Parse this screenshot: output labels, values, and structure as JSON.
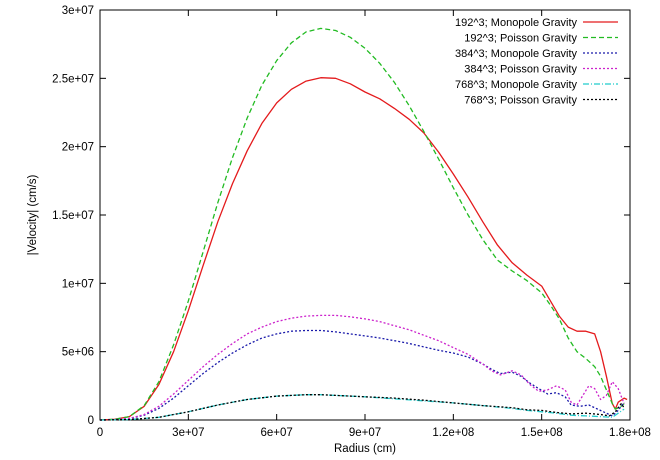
{
  "chart_data": {
    "type": "line",
    "xlabel": "Radius (cm)",
    "ylabel": "|Velocity| (cm/s)",
    "xlim": [
      0,
      180000000
    ],
    "ylim": [
      0,
      30000000
    ],
    "x_ticks": [
      {
        "value": 0,
        "label": "0"
      },
      {
        "value": 30000000,
        "label": "3e+07"
      },
      {
        "value": 60000000,
        "label": "6e+07"
      },
      {
        "value": 90000000,
        "label": "9e+07"
      },
      {
        "value": 120000000,
        "label": "1.2e+08"
      },
      {
        "value": 150000000,
        "label": "1.5e+08"
      },
      {
        "value": 180000000,
        "label": "1.8e+08"
      }
    ],
    "y_ticks": [
      {
        "value": 0,
        "label": "0"
      },
      {
        "value": 5000000,
        "label": "5e+06"
      },
      {
        "value": 10000000,
        "label": "1e+07"
      },
      {
        "value": 15000000,
        "label": "1.5e+07"
      },
      {
        "value": 20000000,
        "label": "2e+07"
      },
      {
        "value": 25000000,
        "label": "2.5e+07"
      },
      {
        "value": 30000000,
        "label": "3e+07"
      }
    ],
    "grid": false,
    "legend_position": "top-right",
    "series": [
      {
        "name": "192^3; Monopole Gravity",
        "color": "#e41a1c",
        "dash": "",
        "points": [
          [
            0,
            0
          ],
          [
            5000000,
            50000
          ],
          [
            10000000,
            250000
          ],
          [
            15000000,
            1000000
          ],
          [
            20000000,
            2600000
          ],
          [
            25000000,
            5000000
          ],
          [
            30000000,
            8000000
          ],
          [
            35000000,
            11300000
          ],
          [
            40000000,
            14500000
          ],
          [
            45000000,
            17300000
          ],
          [
            50000000,
            19700000
          ],
          [
            55000000,
            21700000
          ],
          [
            60000000,
            23200000
          ],
          [
            65000000,
            24200000
          ],
          [
            70000000,
            24800000
          ],
          [
            75000000,
            25050000
          ],
          [
            80000000,
            25000000
          ],
          [
            85000000,
            24600000
          ],
          [
            90000000,
            24000000
          ],
          [
            95000000,
            23500000
          ],
          [
            100000000,
            22800000
          ],
          [
            105000000,
            22000000
          ],
          [
            110000000,
            21000000
          ],
          [
            115000000,
            19600000
          ],
          [
            120000000,
            18000000
          ],
          [
            125000000,
            16300000
          ],
          [
            130000000,
            14500000
          ],
          [
            135000000,
            12800000
          ],
          [
            140000000,
            11500000
          ],
          [
            145000000,
            10600000
          ],
          [
            150000000,
            9800000
          ],
          [
            153000000,
            8700000
          ],
          [
            156000000,
            7600000
          ],
          [
            159000000,
            6800000
          ],
          [
            162000000,
            6500000
          ],
          [
            165000000,
            6500000
          ],
          [
            168000000,
            6300000
          ],
          [
            170000000,
            5000000
          ],
          [
            172000000,
            3200000
          ],
          [
            174000000,
            1200000
          ],
          [
            175000000,
            800000
          ],
          [
            176000000,
            1300000
          ],
          [
            178000000,
            1600000
          ],
          [
            179000000,
            1500000
          ]
        ]
      },
      {
        "name": "192^3; Poisson Gravity",
        "color": "#22bb22",
        "dash": "5,3",
        "points": [
          [
            0,
            0
          ],
          [
            5000000,
            50000
          ],
          [
            10000000,
            250000
          ],
          [
            15000000,
            1050000
          ],
          [
            20000000,
            2800000
          ],
          [
            25000000,
            5500000
          ],
          [
            30000000,
            8700000
          ],
          [
            35000000,
            12300000
          ],
          [
            40000000,
            15900000
          ],
          [
            45000000,
            19200000
          ],
          [
            50000000,
            22100000
          ],
          [
            55000000,
            24500000
          ],
          [
            60000000,
            26300000
          ],
          [
            65000000,
            27600000
          ],
          [
            70000000,
            28400000
          ],
          [
            75000000,
            28650000
          ],
          [
            80000000,
            28500000
          ],
          [
            85000000,
            28000000
          ],
          [
            90000000,
            27200000
          ],
          [
            95000000,
            26100000
          ],
          [
            100000000,
            24700000
          ],
          [
            105000000,
            23000000
          ],
          [
            110000000,
            21100000
          ],
          [
            115000000,
            19100000
          ],
          [
            120000000,
            17000000
          ],
          [
            125000000,
            15000000
          ],
          [
            130000000,
            13200000
          ],
          [
            135000000,
            11700000
          ],
          [
            140000000,
            10900000
          ],
          [
            145000000,
            10200000
          ],
          [
            150000000,
            9300000
          ],
          [
            153000000,
            8400000
          ],
          [
            156000000,
            7400000
          ],
          [
            159000000,
            6000000
          ],
          [
            162000000,
            5000000
          ],
          [
            165000000,
            4500000
          ],
          [
            168000000,
            3900000
          ],
          [
            170000000,
            3200000
          ],
          [
            172000000,
            2200000
          ],
          [
            174000000,
            1200000
          ],
          [
            175000000,
            800000
          ],
          [
            177000000,
            1000000
          ],
          [
            178000000,
            1200000
          ]
        ]
      },
      {
        "name": "384^3; Monopole Gravity",
        "color": "#1a1aaa",
        "dash": "2,2",
        "points": [
          [
            0,
            0
          ],
          [
            5000000,
            20000
          ],
          [
            10000000,
            100000
          ],
          [
            15000000,
            350000
          ],
          [
            20000000,
            850000
          ],
          [
            25000000,
            1600000
          ],
          [
            30000000,
            2500000
          ],
          [
            35000000,
            3400000
          ],
          [
            40000000,
            4200000
          ],
          [
            45000000,
            4900000
          ],
          [
            50000000,
            5500000
          ],
          [
            55000000,
            6000000
          ],
          [
            60000000,
            6300000
          ],
          [
            65000000,
            6500000
          ],
          [
            70000000,
            6550000
          ],
          [
            75000000,
            6550000
          ],
          [
            80000000,
            6450000
          ],
          [
            85000000,
            6300000
          ],
          [
            90000000,
            6150000
          ],
          [
            95000000,
            6000000
          ],
          [
            100000000,
            5800000
          ],
          [
            105000000,
            5600000
          ],
          [
            110000000,
            5350000
          ],
          [
            115000000,
            5100000
          ],
          [
            120000000,
            4900000
          ],
          [
            125000000,
            4600000
          ],
          [
            130000000,
            4100000
          ],
          [
            133000000,
            3700000
          ],
          [
            136000000,
            3400000
          ],
          [
            140000000,
            3500000
          ],
          [
            143000000,
            3200000
          ],
          [
            146000000,
            2700000
          ],
          [
            149000000,
            2300000
          ],
          [
            152000000,
            1900000
          ],
          [
            155000000,
            2000000
          ],
          [
            158000000,
            1700000
          ],
          [
            160000000,
            1100000
          ],
          [
            163000000,
            1000000
          ],
          [
            166000000,
            1100000
          ],
          [
            169000000,
            800000
          ],
          [
            172000000,
            500000
          ],
          [
            174000000,
            300000
          ],
          [
            176000000,
            700000
          ],
          [
            178000000,
            1300000
          ]
        ]
      },
      {
        "name": "384^3; Poisson Gravity",
        "color": "#cc22cc",
        "dash": "2,2",
        "points": [
          [
            0,
            0
          ],
          [
            5000000,
            25000
          ],
          [
            10000000,
            120000
          ],
          [
            15000000,
            400000
          ],
          [
            20000000,
            1000000
          ],
          [
            25000000,
            1900000
          ],
          [
            30000000,
            2900000
          ],
          [
            35000000,
            3900000
          ],
          [
            40000000,
            4800000
          ],
          [
            45000000,
            5600000
          ],
          [
            50000000,
            6300000
          ],
          [
            55000000,
            6800000
          ],
          [
            60000000,
            7200000
          ],
          [
            65000000,
            7450000
          ],
          [
            70000000,
            7600000
          ],
          [
            75000000,
            7650000
          ],
          [
            80000000,
            7650000
          ],
          [
            85000000,
            7550000
          ],
          [
            90000000,
            7400000
          ],
          [
            95000000,
            7200000
          ],
          [
            100000000,
            6900000
          ],
          [
            105000000,
            6600000
          ],
          [
            110000000,
            6200000
          ],
          [
            115000000,
            5800000
          ],
          [
            120000000,
            5300000
          ],
          [
            125000000,
            4800000
          ],
          [
            130000000,
            4100000
          ],
          [
            133000000,
            3600000
          ],
          [
            136000000,
            3300000
          ],
          [
            140000000,
            3600000
          ],
          [
            143000000,
            3300000
          ],
          [
            146000000,
            2600000
          ],
          [
            149000000,
            2100000
          ],
          [
            152000000,
            2200000
          ],
          [
            155000000,
            2500000
          ],
          [
            158000000,
            2200000
          ],
          [
            160000000,
            1300000
          ],
          [
            162000000,
            1100000
          ],
          [
            164000000,
            1800000
          ],
          [
            166000000,
            2500000
          ],
          [
            168000000,
            2300000
          ],
          [
            170000000,
            1500000
          ],
          [
            172000000,
            1800000
          ],
          [
            174000000,
            2800000
          ],
          [
            176000000,
            2300000
          ],
          [
            178000000,
            1200000
          ]
        ]
      },
      {
        "name": "768^3; Monopole Gravity",
        "color": "#22cccc",
        "dash": "6,2,1,2",
        "points": [
          [
            0,
            0
          ],
          [
            10000000,
            30000
          ],
          [
            20000000,
            200000
          ],
          [
            30000000,
            600000
          ],
          [
            40000000,
            1100000
          ],
          [
            50000000,
            1500000
          ],
          [
            60000000,
            1750000
          ],
          [
            70000000,
            1850000
          ],
          [
            75000000,
            1850000
          ],
          [
            80000000,
            1800000
          ],
          [
            90000000,
            1700000
          ],
          [
            100000000,
            1550000
          ],
          [
            110000000,
            1400000
          ],
          [
            120000000,
            1250000
          ],
          [
            130000000,
            1050000
          ],
          [
            140000000,
            850000
          ],
          [
            145000000,
            700000
          ],
          [
            150000000,
            600000
          ],
          [
            155000000,
            500000
          ],
          [
            160000000,
            350000
          ],
          [
            165000000,
            300000
          ],
          [
            170000000,
            250000
          ],
          [
            174000000,
            200000
          ],
          [
            176000000,
            500000
          ],
          [
            178000000,
            800000
          ]
        ]
      },
      {
        "name": "768^3; Poisson Gravity",
        "color": "#000000",
        "dash": "2,2",
        "points": [
          [
            0,
            0
          ],
          [
            10000000,
            30000
          ],
          [
            20000000,
            200000
          ],
          [
            30000000,
            600000
          ],
          [
            40000000,
            1100000
          ],
          [
            50000000,
            1500000
          ],
          [
            60000000,
            1750000
          ],
          [
            70000000,
            1850000
          ],
          [
            75000000,
            1850000
          ],
          [
            80000000,
            1800000
          ],
          [
            90000000,
            1700000
          ],
          [
            100000000,
            1600000
          ],
          [
            110000000,
            1450000
          ],
          [
            120000000,
            1250000
          ],
          [
            130000000,
            1050000
          ],
          [
            140000000,
            900000
          ],
          [
            145000000,
            750000
          ],
          [
            150000000,
            700000
          ],
          [
            155000000,
            550000
          ],
          [
            160000000,
            450000
          ],
          [
            165000000,
            500000
          ],
          [
            170000000,
            400000
          ],
          [
            173000000,
            300000
          ],
          [
            175000000,
            600000
          ],
          [
            177000000,
            1200000
          ],
          [
            178000000,
            900000
          ]
        ]
      }
    ]
  }
}
